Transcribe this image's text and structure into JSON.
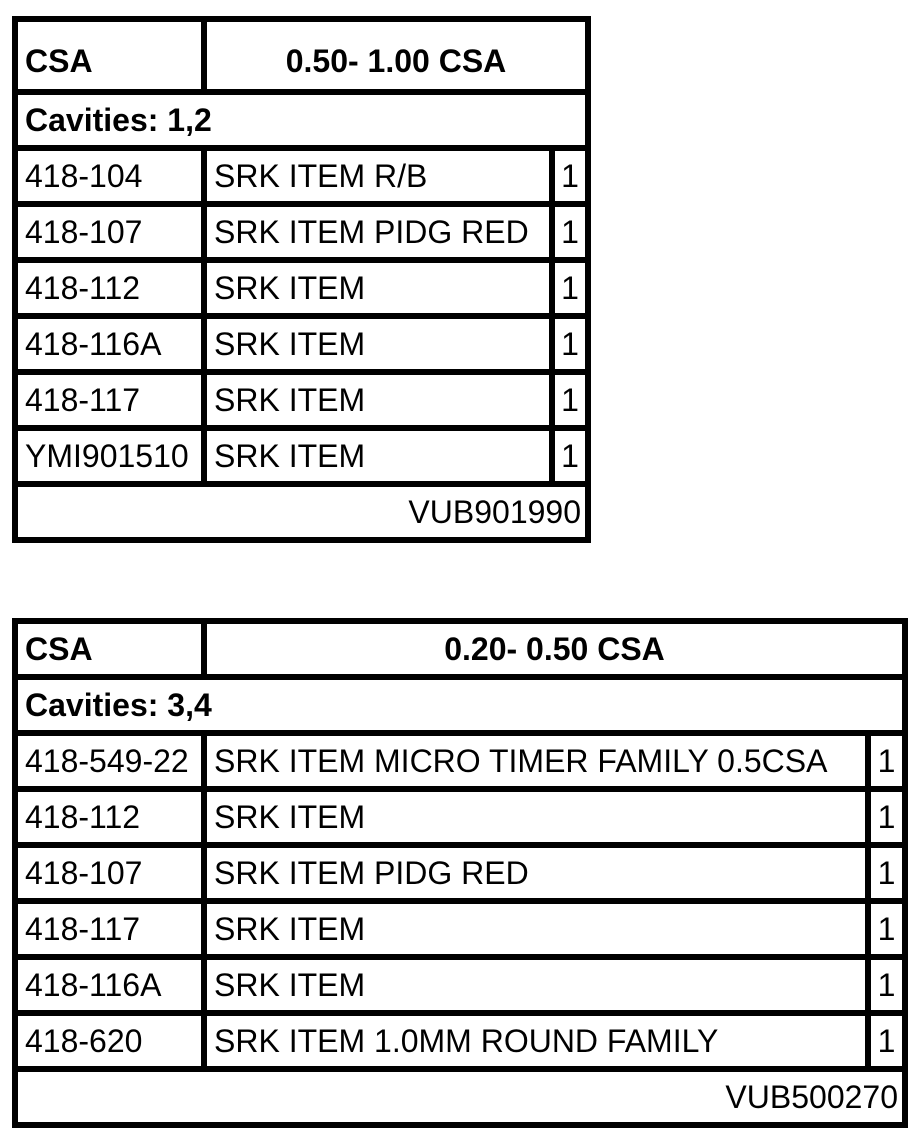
{
  "tables": [
    {
      "header_label": "CSA",
      "header_range": "0.50- 1.00 CSA",
      "cavities": "Cavities: 1,2",
      "rows": [
        {
          "part": "418-104",
          "description": "SRK ITEM R/B",
          "qty": "1"
        },
        {
          "part": "418-107",
          "description": "SRK ITEM PIDG RED",
          "qty": "1"
        },
        {
          "part": "418-112",
          "description": "SRK ITEM",
          "qty": "1"
        },
        {
          "part": "418-116A",
          "description": "SRK ITEM",
          "qty": "1"
        },
        {
          "part": "418-117",
          "description": "SRK ITEM",
          "qty": "1"
        },
        {
          "part": "YMI901510",
          "description": "SRK ITEM",
          "qty": "1"
        }
      ],
      "footer": "VUB901990"
    },
    {
      "header_label": "CSA",
      "header_range": "0.20- 0.50 CSA",
      "cavities": "Cavities: 3,4",
      "rows": [
        {
          "part": "418-549-22",
          "description": "SRK ITEM MICRO TIMER FAMILY 0.5CSA",
          "qty": "1"
        },
        {
          "part": "418-112",
          "description": "SRK ITEM",
          "qty": "1"
        },
        {
          "part": "418-107",
          "description": "SRK ITEM PIDG RED",
          "qty": "1"
        },
        {
          "part": "418-117",
          "description": "SRK ITEM",
          "qty": "1"
        },
        {
          "part": "418-116A",
          "description": "SRK ITEM",
          "qty": "1"
        },
        {
          "part": "418-620",
          "description": "SRK ITEM 1.0MM ROUND FAMILY",
          "qty": "1"
        }
      ],
      "footer": "VUB500270"
    }
  ]
}
